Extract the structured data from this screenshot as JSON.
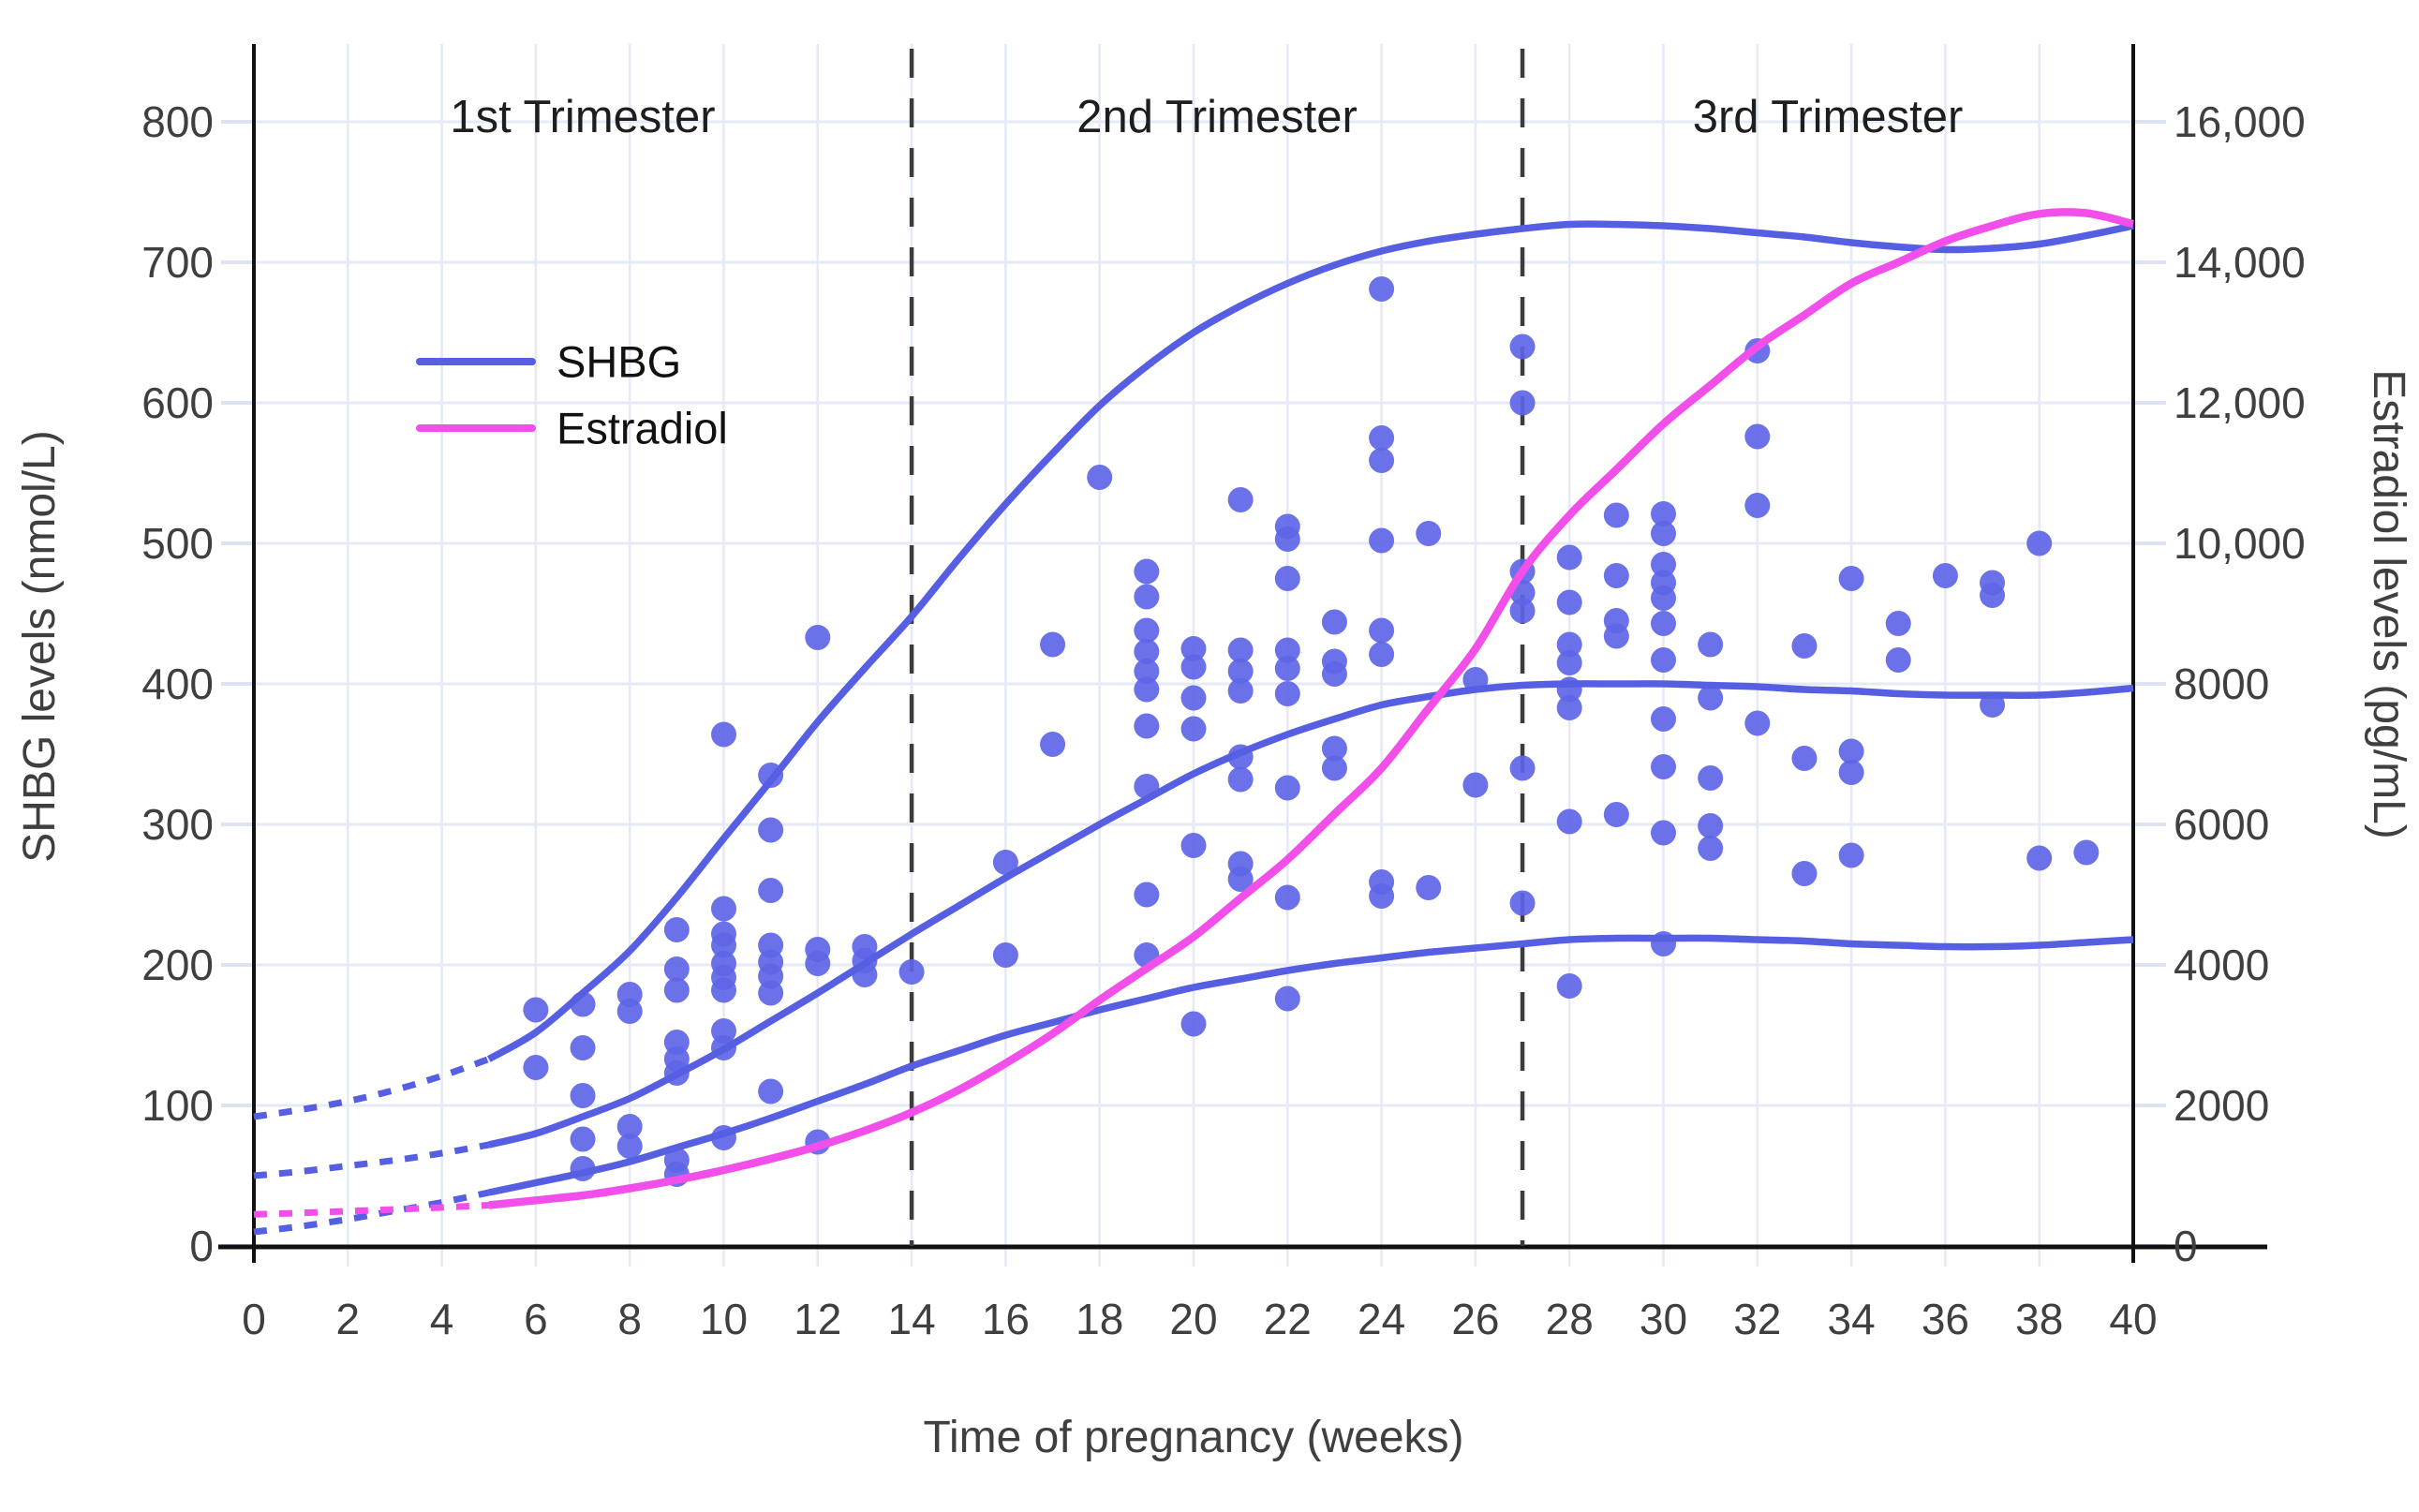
{
  "chart_data": {
    "type": "line+scatter",
    "title": "",
    "x_axis": {
      "label": "Time of pregnancy (weeks)",
      "range": [
        0,
        40
      ],
      "ticks": [
        0,
        2,
        4,
        6,
        8,
        10,
        12,
        14,
        16,
        18,
        20,
        22,
        24,
        26,
        28,
        30,
        32,
        34,
        36,
        38,
        40
      ],
      "grid": true
    },
    "y_axis_left": {
      "label": "SHBG levels (nmol/L)",
      "range": [
        0,
        800
      ],
      "ticks": [
        0,
        100,
        200,
        300,
        400,
        500,
        600,
        700,
        800
      ],
      "grid": true
    },
    "y_axis_right": {
      "label": "Estradiol levels (pg/mL)",
      "range": [
        0,
        16000
      ],
      "ticks": [
        0,
        2000,
        4000,
        6000,
        8000,
        10000,
        12000,
        14000,
        16000
      ],
      "tick_labels": [
        "0",
        "2000",
        "4000",
        "6000",
        "8000",
        "10,000",
        "12,000",
        "14,000",
        "16,000"
      ]
    },
    "trimesters": {
      "labels": [
        "1st Trimester",
        "2nd Trimester",
        "3rd Trimester"
      ],
      "separator_weeks": [
        14,
        27
      ],
      "label_center_weeks": [
        7,
        20.5,
        33.5
      ]
    },
    "legend": {
      "items": [
        {
          "label": "SHBG",
          "color": "#565EE2"
        },
        {
          "label": "Estradiol",
          "color": "#F24FEA"
        }
      ]
    },
    "series": {
      "shbg_upper_dotted": [
        [
          0,
          92
        ],
        [
          1,
          97
        ],
        [
          2,
          103
        ],
        [
          3,
          111
        ],
        [
          4,
          121
        ],
        [
          5,
          133
        ]
      ],
      "shbg_upper_solid": [
        [
          5,
          133
        ],
        [
          6,
          152
        ],
        [
          7,
          180
        ],
        [
          8,
          210
        ],
        [
          9,
          248
        ],
        [
          10,
          290
        ],
        [
          11,
          331
        ],
        [
          12,
          373
        ],
        [
          13,
          411
        ],
        [
          14,
          448
        ],
        [
          15,
          489
        ],
        [
          16,
          528
        ],
        [
          17,
          564
        ],
        [
          18,
          598
        ],
        [
          19,
          626
        ],
        [
          20,
          650
        ],
        [
          21,
          669
        ],
        [
          22,
          685
        ],
        [
          23,
          698
        ],
        [
          24,
          708
        ],
        [
          25,
          715
        ],
        [
          26,
          720
        ],
        [
          27,
          724
        ],
        [
          28,
          727
        ],
        [
          29,
          727
        ],
        [
          30,
          726
        ],
        [
          31,
          724
        ],
        [
          32,
          721
        ],
        [
          33,
          718
        ],
        [
          34,
          714
        ],
        [
          35,
          711
        ],
        [
          36,
          709
        ],
        [
          37,
          710
        ],
        [
          38,
          713
        ],
        [
          39,
          719
        ],
        [
          40,
          726
        ]
      ],
      "shbg_median_dotted": [
        [
          0,
          50
        ],
        [
          1,
          53
        ],
        [
          2,
          57
        ],
        [
          3,
          61
        ],
        [
          4,
          66
        ],
        [
          5,
          72
        ]
      ],
      "shbg_median_solid": [
        [
          5,
          72
        ],
        [
          6,
          80
        ],
        [
          7,
          92
        ],
        [
          8,
          105
        ],
        [
          9,
          122
        ],
        [
          10,
          140
        ],
        [
          11,
          160
        ],
        [
          12,
          180
        ],
        [
          13,
          201
        ],
        [
          14,
          222
        ],
        [
          15,
          242
        ],
        [
          16,
          262
        ],
        [
          17,
          281
        ],
        [
          18,
          300
        ],
        [
          19,
          318
        ],
        [
          20,
          336
        ],
        [
          21,
          351
        ],
        [
          22,
          364
        ],
        [
          23,
          375
        ],
        [
          24,
          385
        ],
        [
          25,
          391
        ],
        [
          26,
          396
        ],
        [
          27,
          399
        ],
        [
          28,
          400
        ],
        [
          29,
          400
        ],
        [
          30,
          400
        ],
        [
          31,
          399
        ],
        [
          32,
          398
        ],
        [
          33,
          396
        ],
        [
          34,
          395
        ],
        [
          35,
          393
        ],
        [
          36,
          392
        ],
        [
          37,
          392
        ],
        [
          38,
          392
        ],
        [
          39,
          394
        ],
        [
          40,
          397
        ]
      ],
      "shbg_lower_dotted": [
        [
          0,
          10
        ],
        [
          1,
          14
        ],
        [
          2,
          19
        ],
        [
          3,
          25
        ],
        [
          4,
          31
        ],
        [
          5,
          38
        ]
      ],
      "shbg_lower_solid": [
        [
          5,
          38
        ],
        [
          6,
          45
        ],
        [
          7,
          52
        ],
        [
          8,
          60
        ],
        [
          9,
          70
        ],
        [
          10,
          80
        ],
        [
          11,
          91
        ],
        [
          12,
          103
        ],
        [
          13,
          115
        ],
        [
          14,
          128
        ],
        [
          15,
          139
        ],
        [
          16,
          150
        ],
        [
          17,
          159
        ],
        [
          18,
          168
        ],
        [
          19,
          176
        ],
        [
          20,
          184
        ],
        [
          21,
          190
        ],
        [
          22,
          196
        ],
        [
          23,
          201
        ],
        [
          24,
          205
        ],
        [
          25,
          209
        ],
        [
          26,
          212
        ],
        [
          27,
          215
        ],
        [
          28,
          218
        ],
        [
          29,
          219
        ],
        [
          30,
          219
        ],
        [
          31,
          219
        ],
        [
          32,
          218
        ],
        [
          33,
          217
        ],
        [
          34,
          215
        ],
        [
          35,
          214
        ],
        [
          36,
          213
        ],
        [
          37,
          213
        ],
        [
          38,
          214
        ],
        [
          39,
          216
        ],
        [
          40,
          218
        ]
      ],
      "estradiol_dotted_pg": [
        [
          0,
          450
        ],
        [
          1,
          470
        ],
        [
          2,
          495
        ],
        [
          3,
          520
        ],
        [
          4,
          548
        ],
        [
          5,
          580
        ]
      ],
      "estradiol_solid_pg": [
        [
          5,
          580
        ],
        [
          6,
          650
        ],
        [
          7,
          720
        ],
        [
          8,
          820
        ],
        [
          9,
          940
        ],
        [
          10,
          1080
        ],
        [
          11,
          1240
        ],
        [
          12,
          1420
        ],
        [
          13,
          1640
        ],
        [
          14,
          1900
        ],
        [
          15,
          2220
        ],
        [
          16,
          2600
        ],
        [
          17,
          3020
        ],
        [
          18,
          3500
        ],
        [
          19,
          3950
        ],
        [
          20,
          4400
        ],
        [
          21,
          4950
        ],
        [
          22,
          5500
        ],
        [
          23,
          6150
        ],
        [
          24,
          6800
        ],
        [
          25,
          7650
        ],
        [
          26,
          8500
        ],
        [
          27,
          9600
        ],
        [
          28,
          10400
        ],
        [
          29,
          11050
        ],
        [
          30,
          11700
        ],
        [
          31,
          12250
        ],
        [
          32,
          12800
        ],
        [
          33,
          13250
        ],
        [
          34,
          13700
        ],
        [
          35,
          14000
        ],
        [
          36,
          14300
        ],
        [
          37,
          14520
        ],
        [
          38,
          14690
        ],
        [
          39,
          14700
        ],
        [
          40,
          14545
        ]
      ]
    },
    "scatter_shbg_weeks_values": [
      [
        6,
        168
      ],
      [
        6,
        127
      ],
      [
        7,
        172
      ],
      [
        7,
        141
      ],
      [
        7,
        107
      ],
      [
        7,
        76
      ],
      [
        7,
        55
      ],
      [
        8,
        179
      ],
      [
        8,
        167
      ],
      [
        8,
        85
      ],
      [
        8,
        71
      ],
      [
        9,
        225
      ],
      [
        9,
        197
      ],
      [
        9,
        182
      ],
      [
        9,
        145
      ],
      [
        9,
        133
      ],
      [
        9,
        123
      ],
      [
        9,
        61
      ],
      [
        9,
        51
      ],
      [
        10,
        364
      ],
      [
        10,
        240
      ],
      [
        10,
        222
      ],
      [
        10,
        214
      ],
      [
        10,
        201
      ],
      [
        10,
        191
      ],
      [
        10,
        182
      ],
      [
        10,
        153
      ],
      [
        10,
        141
      ],
      [
        10,
        77
      ],
      [
        11,
        335
      ],
      [
        11,
        296
      ],
      [
        11,
        253
      ],
      [
        11,
        214
      ],
      [
        11,
        202
      ],
      [
        11,
        192
      ],
      [
        11,
        180
      ],
      [
        11,
        110
      ],
      [
        12,
        433
      ],
      [
        12,
        211
      ],
      [
        12,
        201
      ],
      [
        12,
        74
      ],
      [
        13,
        213
      ],
      [
        13,
        203
      ],
      [
        13,
        193
      ],
      [
        14,
        195
      ],
      [
        16,
        273
      ],
      [
        16,
        207
      ],
      [
        17,
        428
      ],
      [
        17,
        357
      ],
      [
        18,
        547
      ],
      [
        19,
        480
      ],
      [
        19,
        462
      ],
      [
        19,
        438
      ],
      [
        19,
        423
      ],
      [
        19,
        409
      ],
      [
        19,
        396
      ],
      [
        19,
        370
      ],
      [
        19,
        327
      ],
      [
        19,
        250
      ],
      [
        19,
        207
      ],
      [
        20,
        425
      ],
      [
        20,
        412
      ],
      [
        20,
        390
      ],
      [
        20,
        368
      ],
      [
        20,
        285
      ],
      [
        20,
        158
      ],
      [
        21,
        531
      ],
      [
        21,
        424
      ],
      [
        21,
        409
      ],
      [
        21,
        395
      ],
      [
        21,
        348
      ],
      [
        21,
        332
      ],
      [
        21,
        272
      ],
      [
        21,
        261
      ],
      [
        22,
        512
      ],
      [
        22,
        503
      ],
      [
        22,
        475
      ],
      [
        22,
        424
      ],
      [
        22,
        411
      ],
      [
        22,
        393
      ],
      [
        22,
        326
      ],
      [
        22,
        248
      ],
      [
        22,
        176
      ],
      [
        23,
        444
      ],
      [
        23,
        416
      ],
      [
        23,
        407
      ],
      [
        23,
        354
      ],
      [
        23,
        340
      ],
      [
        24,
        681
      ],
      [
        24,
        575
      ],
      [
        24,
        559
      ],
      [
        24,
        502
      ],
      [
        24,
        438
      ],
      [
        24,
        421
      ],
      [
        24,
        259
      ],
      [
        24,
        249
      ],
      [
        25,
        507
      ],
      [
        25,
        255
      ],
      [
        26,
        403
      ],
      [
        26,
        328
      ],
      [
        27,
        640
      ],
      [
        27,
        600
      ],
      [
        27,
        480
      ],
      [
        27,
        465
      ],
      [
        27,
        452
      ],
      [
        27,
        340
      ],
      [
        27,
        244
      ],
      [
        28,
        490
      ],
      [
        28,
        458
      ],
      [
        28,
        428
      ],
      [
        28,
        415
      ],
      [
        28,
        396
      ],
      [
        28,
        383
      ],
      [
        28,
        302
      ],
      [
        28,
        185
      ],
      [
        29,
        520
      ],
      [
        29,
        477
      ],
      [
        29,
        445
      ],
      [
        29,
        434
      ],
      [
        29,
        307
      ],
      [
        30,
        521
      ],
      [
        30,
        507
      ],
      [
        30,
        485
      ],
      [
        30,
        472
      ],
      [
        30,
        461
      ],
      [
        30,
        443
      ],
      [
        30,
        417
      ],
      [
        30,
        375
      ],
      [
        30,
        341
      ],
      [
        30,
        294
      ],
      [
        30,
        215
      ],
      [
        31,
        428
      ],
      [
        31,
        390
      ],
      [
        31,
        333
      ],
      [
        31,
        299
      ],
      [
        31,
        283
      ],
      [
        32,
        637
      ],
      [
        32,
        576
      ],
      [
        32,
        527
      ],
      [
        32,
        372
      ],
      [
        33,
        427
      ],
      [
        33,
        347
      ],
      [
        33,
        265
      ],
      [
        34,
        475
      ],
      [
        34,
        352
      ],
      [
        34,
        337
      ],
      [
        34,
        278
      ],
      [
        35,
        443
      ],
      [
        35,
        417
      ],
      [
        36,
        477
      ],
      [
        37,
        472
      ],
      [
        37,
        463
      ],
      [
        37,
        385
      ],
      [
        38,
        500
      ],
      [
        38,
        276
      ],
      [
        39,
        280
      ]
    ]
  },
  "colors": {
    "shbg_line": "#565EE2",
    "estradiol_line": "#F24FEA",
    "scatter_dot": "#5E65E6",
    "gridline": "#E5EAF6",
    "tick_stub": "#DDE3F2",
    "axis_line": "#111111",
    "separator": "#3C3C3C",
    "text": "#3F3F3F"
  }
}
